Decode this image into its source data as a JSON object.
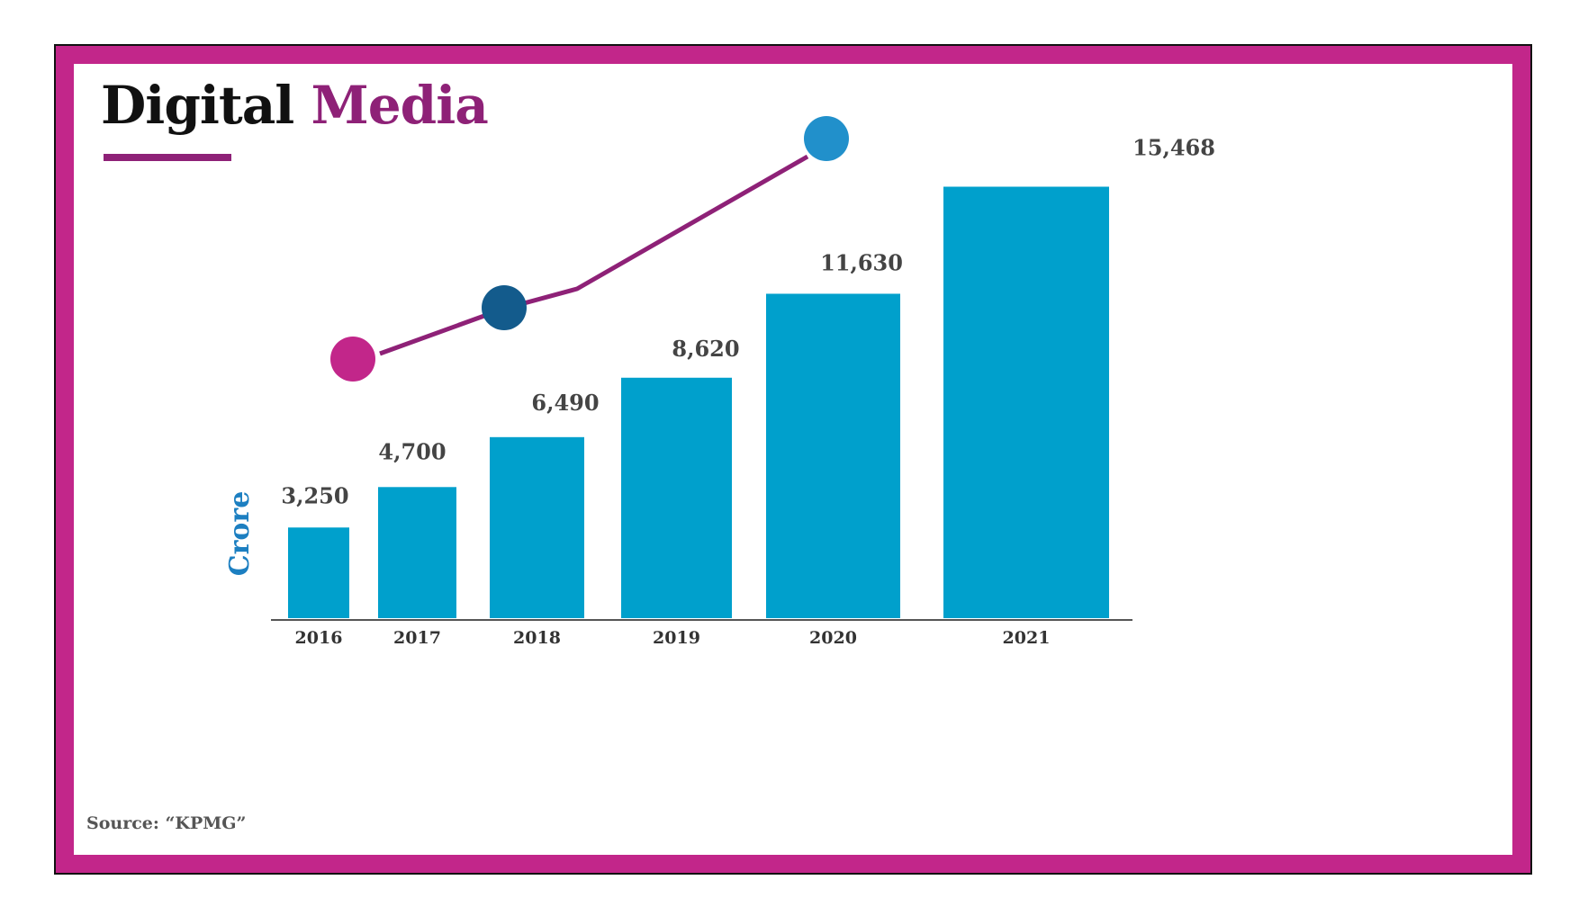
{
  "page": {
    "title_word_1": "Digital",
    "title_word_2": "Media",
    "source": "Source: “KPMG”"
  },
  "colors": {
    "frame": "#c2268a",
    "bar": "#00a0cc",
    "line": "#8e2177",
    "title_accent": "#8e2177",
    "axis_label": "#1c7fc1",
    "value_label": "#444444"
  },
  "chart_data": {
    "type": "bar",
    "categories": [
      "2016",
      "2017",
      "2018",
      "2019",
      "2020",
      "2021"
    ],
    "values": [
      3250,
      4700,
      6490,
      8620,
      11630,
      15468
    ],
    "value_labels": [
      "3,250",
      "4,700",
      "6,490",
      "8,620",
      "11,630",
      "15,468"
    ],
    "ylabel": "Crore",
    "xlabel": "",
    "ylim": [
      0,
      16000
    ],
    "grid": false,
    "legend": false,
    "trend_line": {
      "markers": [
        {
          "at_category": "2016",
          "color": "#c2268a"
        },
        {
          "at_category": "2017",
          "color": "#135b8c"
        },
        {
          "at_category": "2020",
          "color": "#2190cb"
        }
      ]
    }
  }
}
